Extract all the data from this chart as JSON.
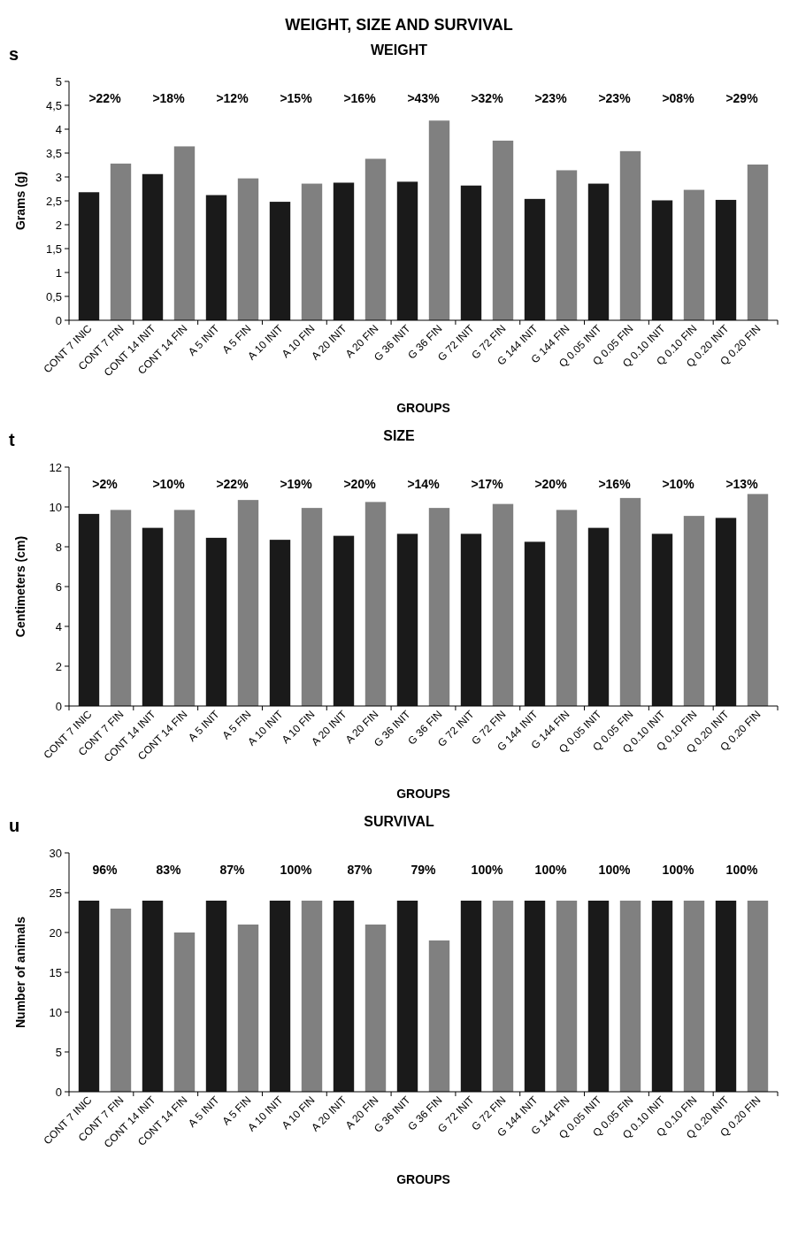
{
  "chart_data": [
    {
      "type": "bar",
      "title": "WEIGHT, SIZE AND SURVIVAL",
      "subtitle": "WEIGHT",
      "xlabel": "GROUPS",
      "ylabel": "Grams (g)",
      "categories": [
        "CONT 7 INIC",
        "CONT 7 FIN",
        "CONT 14 INIT",
        "CONT 14 FIN",
        "A 5 INIT",
        "A 5 FIN",
        "A 10 INIT",
        "A 10 FIN",
        "A 20 INIT",
        "A 20 FIN",
        "G 36 INIT",
        "G 36 FIN",
        "G 72 INIT",
        "G 72 FIN",
        "G 144 INIT",
        "G 144 FIN",
        "Q 0.05 INIT",
        "Q 0.05 FIN",
        "Q 0.10 INIT",
        "Q 0.10 FIN",
        "Q 0.20 INIT",
        "Q 0.20 FIN"
      ],
      "values": [
        2.68,
        3.28,
        3.06,
        3.64,
        2.62,
        2.97,
        2.48,
        2.86,
        2.88,
        3.38,
        2.9,
        4.18,
        2.82,
        3.76,
        2.54,
        3.14,
        2.86,
        3.54,
        2.51,
        2.73,
        2.52,
        3.26
      ],
      "colors": [
        "#1a1a1a",
        "#808080",
        "#1a1a1a",
        "#808080",
        "#1a1a1a",
        "#808080",
        "#1a1a1a",
        "#808080",
        "#1a1a1a",
        "#808080",
        "#1a1a1a",
        "#808080",
        "#1a1a1a",
        "#808080",
        "#1a1a1a",
        "#808080",
        "#1a1a1a",
        "#808080",
        "#1a1a1a",
        "#808080",
        "#1a1a1a",
        "#808080"
      ],
      "ylim": [
        0,
        5
      ],
      "yticks": [
        0,
        {
          "value": 0.5,
          "label": "0,5"
        },
        1,
        {
          "value": 1.5,
          "label": "1,5"
        },
        2,
        {
          "value": 2.5,
          "label": "2,5"
        },
        3,
        {
          "value": 3.5,
          "label": "3,5"
        },
        4,
        {
          "value": 4.5,
          "label": "4,5"
        },
        5
      ],
      "annotations": [
        "s",
        ">22%",
        ">18%",
        ">12%",
        ">15%",
        ">16%",
        ">43%",
        ">32%",
        ">23%",
        ">23%",
        ">08%",
        ">29%"
      ]
    },
    {
      "type": "bar",
      "subtitle": "SIZE",
      "xlabel": "GROUPS",
      "ylabel": "Centimeters (cm)",
      "categories": [
        "CONT 7 INIC",
        "CONT 7 FIN",
        "CONT 14 INIT",
        "CONT 14 FIN",
        "A 5 INIT",
        "A 5 FIN",
        "A 10 INIT",
        "A 10 FIN",
        "A 20 INIT",
        "A 20 FIN",
        "G 36 INIT",
        "G 36 FIN",
        "G 72 INIT",
        "G 72 FIN",
        "G 144 INIT",
        "G 144 FIN",
        "Q 0.05 INIT",
        "Q 0.05 FIN",
        "Q 0.10 INIT",
        "Q 0.10 FIN",
        "Q 0.20 INIT",
        "Q 0.20 FIN"
      ],
      "values": [
        9.65,
        9.85,
        8.95,
        9.85,
        8.45,
        10.35,
        8.35,
        9.95,
        8.55,
        10.25,
        8.65,
        9.95,
        8.65,
        10.15,
        8.25,
        9.85,
        8.95,
        10.45,
        8.65,
        9.55,
        9.45,
        10.65
      ],
      "colors": [
        "#1a1a1a",
        "#808080",
        "#1a1a1a",
        "#808080",
        "#1a1a1a",
        "#808080",
        "#1a1a1a",
        "#808080",
        "#1a1a1a",
        "#808080",
        "#1a1a1a",
        "#808080",
        "#1a1a1a",
        "#808080",
        "#1a1a1a",
        "#808080",
        "#1a1a1a",
        "#808080",
        "#1a1a1a",
        "#808080",
        "#1a1a1a",
        "#808080"
      ],
      "ylim": [
        0,
        12
      ],
      "yticks": [
        0,
        2,
        4,
        6,
        8,
        10,
        12
      ],
      "annotations": [
        "t",
        ">2%",
        ">10%",
        ">22%",
        ">19%",
        ">20%",
        ">14%",
        ">17%",
        ">20%",
        ">16%",
        ">10%",
        ">13%"
      ]
    },
    {
      "type": "bar",
      "subtitle": "SURVIVAL",
      "xlabel": "GROUPS",
      "ylabel": "Number of animals",
      "categories": [
        "CONT 7 INIC",
        "CONT 7 FIN",
        "CONT 14 INIT",
        "CONT 14 FIN",
        "A 5 INIT",
        "A 5 FIN",
        "A 10 INIT",
        "A 10 FIN",
        "A 20 INIT",
        "A 20 FIN",
        "G 36 INIT",
        "G 36 FIN",
        "G 72 INIT",
        "G 72 FIN",
        "G 144 INIT",
        "G 144 FIN",
        "Q 0.05 INIT",
        "Q 0.05 FIN",
        "Q 0.10 INIT",
        "Q 0.10 FIN",
        "Q 0.20 INIT",
        "Q 0.20 FIN"
      ],
      "values": [
        24,
        23,
        24,
        20,
        24,
        21,
        24,
        24,
        24,
        21,
        24,
        19,
        24,
        24,
        24,
        24,
        24,
        24,
        24,
        24,
        24,
        24
      ],
      "colors": [
        "#1a1a1a",
        "#808080",
        "#1a1a1a",
        "#808080",
        "#1a1a1a",
        "#808080",
        "#1a1a1a",
        "#808080",
        "#1a1a1a",
        "#808080",
        "#1a1a1a",
        "#808080",
        "#1a1a1a",
        "#808080",
        "#1a1a1a",
        "#808080",
        "#1a1a1a",
        "#808080",
        "#1a1a1a",
        "#808080",
        "#1a1a1a",
        "#808080"
      ],
      "ylim": [
        0,
        30
      ],
      "yticks": [
        0,
        5,
        10,
        15,
        20,
        25,
        30
      ],
      "annotations": [
        "u",
        "96%",
        "83%",
        "87%",
        "100%",
        "87%",
        "79%",
        "100%",
        "100%",
        "100%",
        "100%",
        "100%"
      ]
    }
  ]
}
